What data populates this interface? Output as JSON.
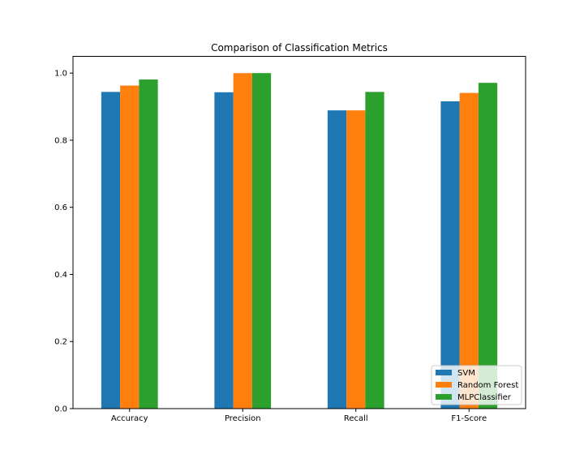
{
  "chart_data": {
    "type": "bar",
    "title": "Comparison of Classification Metrics",
    "xlabel": "",
    "ylabel": "",
    "categories": [
      "Accuracy",
      "Precision",
      "Recall",
      "F1-Score"
    ],
    "series": [
      {
        "name": "SVM",
        "color": "#1f77b4",
        "values": [
          0.944,
          0.943,
          0.889,
          0.916
        ]
      },
      {
        "name": "Random Forest",
        "color": "#ff7f0e",
        "values": [
          0.963,
          1.0,
          0.889,
          0.941
        ]
      },
      {
        "name": "MLPClassifier",
        "color": "#2ca02c",
        "values": [
          0.981,
          1.0,
          0.944,
          0.971
        ]
      }
    ],
    "ylim": [
      0,
      1.05
    ],
    "yticks": [
      "0.0",
      "0.2",
      "0.4",
      "0.6",
      "0.8",
      "1.0"
    ],
    "grid": false,
    "legend_position": "lower right"
  }
}
